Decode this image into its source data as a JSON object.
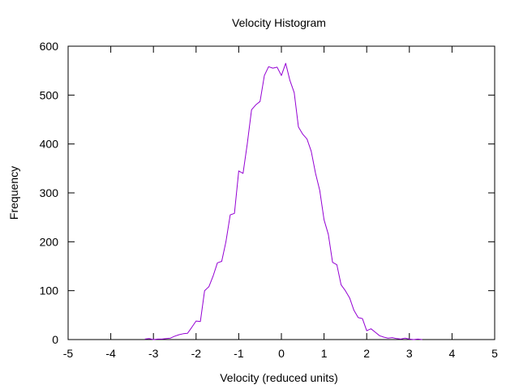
{
  "colors": {
    "series": "#9400d3",
    "axis": "#000000",
    "background": "#ffffff"
  },
  "chart_data": {
    "type": "line",
    "title": "Velocity Histogram",
    "xlabel": "Velocity (reduced units)",
    "ylabel": "Frequency",
    "xlim": [
      -5,
      5
    ],
    "ylim": [
      0,
      600
    ],
    "xticks": [
      -5,
      -4,
      -3,
      -2,
      -1,
      0,
      1,
      2,
      3,
      4,
      5
    ],
    "yticks": [
      0,
      100,
      200,
      300,
      400,
      500,
      600
    ],
    "xtick_labels": [
      "-5",
      "-4",
      "-3",
      "-2",
      "-1",
      "0",
      "1",
      "2",
      "3",
      "4",
      "5"
    ],
    "ytick_labels": [
      "0",
      "100",
      "200",
      "300",
      "400",
      "500",
      "600"
    ],
    "grid": false,
    "legend": "none",
    "series": [
      {
        "x": [
          -3.2,
          -3.1,
          -3.0,
          -2.9,
          -2.8,
          -2.7,
          -2.6,
          -2.5,
          -2.4,
          -2.3,
          -2.2,
          -2.1,
          -2.0,
          -1.9,
          -1.8,
          -1.7,
          -1.6,
          -1.5,
          -1.4,
          -1.3,
          -1.2,
          -1.1,
          -1.0,
          -0.9,
          -0.8,
          -0.7,
          -0.6,
          -0.5,
          -0.4,
          -0.3,
          -0.2,
          -0.1,
          0.0,
          0.1,
          0.2,
          0.3,
          0.4,
          0.5,
          0.6,
          0.7,
          0.8,
          0.9,
          1.0,
          1.1,
          1.2,
          1.3,
          1.4,
          1.5,
          1.6,
          1.7,
          1.8,
          1.9,
          2.0,
          2.1,
          2.2,
          2.3,
          2.4,
          2.5,
          2.6,
          2.7,
          2.8,
          2.9,
          3.0,
          3.1,
          3.2,
          3.3
        ],
        "values": [
          1,
          2,
          0,
          1,
          1,
          2,
          3,
          7,
          10,
          12,
          13,
          25,
          38,
          37,
          100,
          108,
          130,
          157,
          160,
          200,
          255,
          258,
          345,
          340,
          400,
          470,
          480,
          487,
          540,
          558,
          555,
          557,
          540,
          565,
          530,
          505,
          435,
          420,
          410,
          385,
          340,
          305,
          245,
          215,
          158,
          153,
          112,
          100,
          85,
          60,
          45,
          43,
          18,
          22,
          15,
          8,
          5,
          3,
          4,
          2,
          1,
          3,
          1,
          0,
          1,
          0
        ]
      }
    ]
  }
}
